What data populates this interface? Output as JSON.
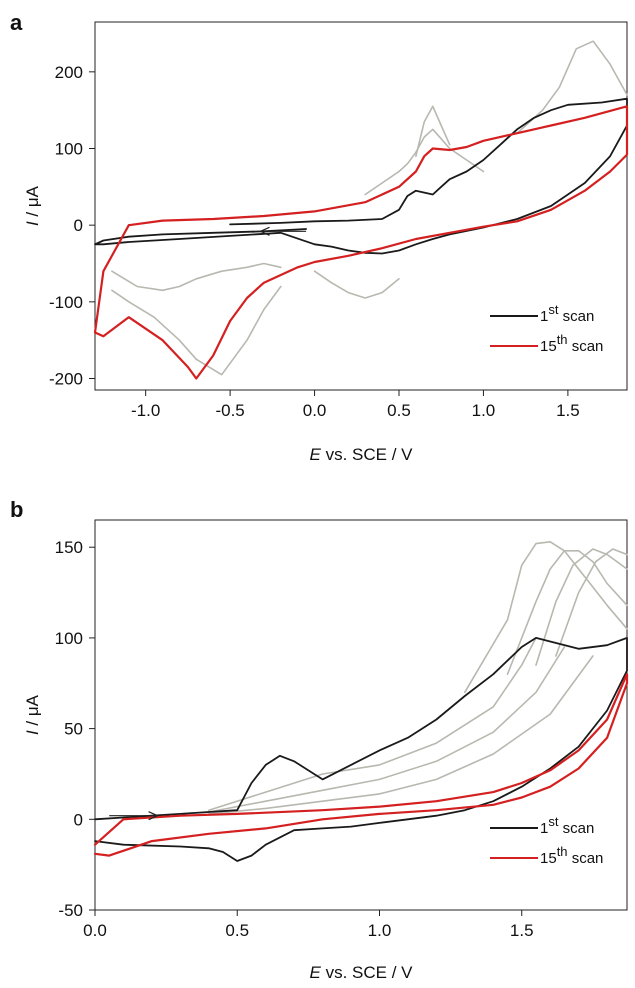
{
  "chart_data": [
    {
      "panel_label": "a",
      "type": "line",
      "xlabel_italic": "E",
      "xlabel_rest": " vs. SCE / V",
      "ylabel_italic": "I",
      "ylabel_rest": " / μA",
      "xlim": [
        -1.3,
        1.85
      ],
      "ylim": [
        -215,
        265
      ],
      "x_ticks": [
        -1.0,
        -0.5,
        0.0,
        0.5,
        1.0,
        1.5
      ],
      "x_tick_labels": [
        "-1.0",
        "-0.5",
        "0.0",
        "0.5",
        "1.0",
        "1.5"
      ],
      "y_ticks": [
        -200,
        -100,
        0,
        100,
        200
      ],
      "y_tick_labels": [
        "-200",
        "-100",
        "0",
        "100",
        "200"
      ],
      "legend": [
        {
          "sup": "st",
          "pre": "1",
          "post": " scan",
          "color": "#1a1a1a"
        },
        {
          "sup": "th",
          "pre": "15",
          "post": " scan",
          "color": "#d42020"
        }
      ],
      "colors": {
        "first_scan": "#1a1a1a",
        "last_scan": "#d42020",
        "intermediate_scans": "#b8b8b0"
      },
      "series": [
        {
          "role": "first",
          "x": [
            -0.05,
            -0.3,
            -0.6,
            -0.9,
            -1.1,
            -1.25,
            -1.3,
            -1.25,
            -1.1,
            -0.8,
            -0.5,
            -0.2,
            0.0,
            0.1,
            0.2,
            0.3,
            0.4,
            0.5,
            0.6,
            0.7,
            0.8,
            1.0,
            1.2,
            1.4,
            1.6,
            1.75,
            1.85,
            1.85,
            1.7,
            1.5,
            1.4,
            1.3,
            1.2,
            1.1,
            1.0,
            0.9,
            0.8,
            0.75,
            0.7,
            0.6,
            0.55,
            0.5,
            0.4,
            0.2,
            0.0,
            -0.2,
            -0.5
          ],
          "y": [
            -5,
            -8,
            -10,
            -12,
            -15,
            -20,
            -25,
            -25,
            -22,
            -18,
            -14,
            -10,
            -25,
            -28,
            -33,
            -36,
            -37,
            -33,
            -25,
            -18,
            -12,
            -3,
            8,
            25,
            55,
            90,
            130,
            165,
            160,
            157,
            150,
            140,
            125,
            105,
            85,
            70,
            60,
            50,
            40,
            45,
            38,
            20,
            8,
            6,
            5,
            3,
            1
          ]
        },
        {
          "role": "last",
          "x": [
            -1.1,
            -1.25,
            -1.3,
            -1.25,
            -1.1,
            -0.9,
            -0.75,
            -0.7,
            -0.6,
            -0.5,
            -0.4,
            -0.3,
            -0.2,
            -0.1,
            0.0,
            0.2,
            0.4,
            0.6,
            0.8,
            1.0,
            1.2,
            1.4,
            1.6,
            1.75,
            1.85,
            1.85,
            1.6,
            1.4,
            1.2,
            1.0,
            0.9,
            0.8,
            0.7,
            0.65,
            0.6,
            0.5,
            0.3,
            0.0,
            -0.3,
            -0.6,
            -0.9,
            -1.1
          ],
          "y": [
            0,
            -60,
            -140,
            -145,
            -120,
            -150,
            -185,
            -200,
            -170,
            -125,
            -95,
            -75,
            -65,
            -55,
            -48,
            -40,
            -30,
            -18,
            -10,
            -2,
            5,
            20,
            45,
            70,
            92,
            155,
            140,
            130,
            120,
            110,
            102,
            98,
            100,
            90,
            70,
            50,
            30,
            18,
            12,
            8,
            6,
            0
          ]
        },
        {
          "role": "intermediate",
          "x": [
            0.6,
            0.65,
            0.7,
            0.75,
            0.8
          ],
          "y": [
            90,
            135,
            155,
            130,
            105
          ]
        },
        {
          "role": "intermediate",
          "x": [
            1.2,
            1.35,
            1.45,
            1.55,
            1.65,
            1.75,
            1.85
          ],
          "y": [
            120,
            150,
            180,
            230,
            240,
            210,
            170
          ]
        },
        {
          "role": "intermediate",
          "x": [
            -1.2,
            -1.1,
            -0.95,
            -0.8,
            -0.7,
            -0.55,
            -0.4,
            -0.3,
            -0.2
          ],
          "y": [
            -85,
            -100,
            -120,
            -150,
            -175,
            -195,
            -150,
            -110,
            -80
          ]
        },
        {
          "role": "intermediate",
          "x": [
            -1.2,
            -1.05,
            -0.9,
            -0.8,
            -0.7,
            -0.55,
            -0.4,
            -0.3,
            -0.2
          ],
          "y": [
            -60,
            -80,
            -85,
            -80,
            -70,
            -60,
            -55,
            -50,
            -55
          ]
        },
        {
          "role": "intermediate",
          "x": [
            0.0,
            0.1,
            0.2,
            0.3,
            0.4,
            0.5
          ],
          "y": [
            -60,
            -75,
            -88,
            -95,
            -88,
            -70
          ]
        },
        {
          "role": "intermediate",
          "x": [
            0.3,
            0.4,
            0.5,
            0.55,
            0.6,
            0.65,
            0.7,
            0.8,
            0.9,
            1.0
          ],
          "y": [
            40,
            55,
            70,
            80,
            95,
            115,
            125,
            100,
            85,
            70
          ]
        }
      ]
    },
    {
      "panel_label": "b",
      "type": "line",
      "xlabel_italic": "E",
      "xlabel_rest": " vs. SCE / V",
      "ylabel_italic": "I",
      "ylabel_rest": " / μA",
      "xlim": [
        0.0,
        1.87
      ],
      "ylim": [
        -50,
        165
      ],
      "x_ticks": [
        0.0,
        0.5,
        1.0,
        1.5
      ],
      "x_tick_labels": [
        "0.0",
        "0.5",
        "1.0",
        "1.5"
      ],
      "y_ticks": [
        -50,
        0,
        50,
        100,
        150
      ],
      "y_tick_labels": [
        "-50",
        "0",
        "50",
        "100",
        "150"
      ],
      "legend": [
        {
          "sup": "st",
          "pre": "1",
          "post": " scan",
          "color": "#1a1a1a"
        },
        {
          "sup": "th",
          "pre": "15",
          "post": " scan",
          "color": "#d42020"
        }
      ],
      "colors": {
        "first_scan": "#1a1a1a",
        "last_scan": "#d42020",
        "intermediate_scans": "#b8b8b0"
      },
      "series": [
        {
          "role": "first",
          "x": [
            0.0,
            0.1,
            0.2,
            0.3,
            0.4,
            0.5,
            0.55,
            0.6,
            0.65,
            0.7,
            0.8,
            0.9,
            1.0,
            1.1,
            1.2,
            1.3,
            1.4,
            1.5,
            1.55,
            1.6,
            1.7,
            1.8,
            1.87,
            1.87,
            1.8,
            1.7,
            1.6,
            1.5,
            1.4,
            1.3,
            1.2,
            1.1,
            1.0,
            0.9,
            0.8,
            0.7,
            0.6,
            0.55,
            0.5,
            0.45,
            0.4,
            0.3,
            0.1,
            0.0
          ],
          "y": [
            0,
            1,
            2,
            3,
            4,
            5,
            20,
            30,
            35,
            32,
            22,
            30,
            38,
            45,
            55,
            68,
            80,
            95,
            100,
            98,
            94,
            96,
            100,
            82,
            60,
            40,
            28,
            18,
            10,
            5,
            2,
            0,
            -2,
            -4,
            -5,
            -6,
            -14,
            -20,
            -23,
            -18,
            -16,
            -15,
            -14,
            -12
          ]
        },
        {
          "role": "last",
          "x": [
            0.0,
            0.1,
            0.3,
            0.5,
            0.8,
            1.0,
            1.2,
            1.4,
            1.5,
            1.6,
            1.7,
            1.8,
            1.87,
            1.87,
            1.8,
            1.7,
            1.6,
            1.5,
            1.4,
            1.2,
            1.0,
            0.8,
            0.6,
            0.4,
            0.2,
            0.05,
            0.0
          ],
          "y": [
            -14,
            0,
            2,
            3,
            5,
            7,
            10,
            15,
            20,
            27,
            38,
            55,
            80,
            75,
            45,
            28,
            18,
            12,
            8,
            5,
            3,
            0,
            -5,
            -8,
            -12,
            -20,
            -19
          ]
        },
        {
          "role": "intermediate",
          "x": [
            1.3,
            1.45,
            1.5,
            1.55,
            1.6,
            1.65,
            1.7,
            1.75,
            1.8,
            1.87
          ],
          "y": [
            70,
            110,
            140,
            152,
            153,
            148,
            138,
            128,
            118,
            105
          ]
        },
        {
          "role": "intermediate",
          "x": [
            1.45,
            1.55,
            1.6,
            1.65,
            1.7,
            1.75,
            1.8,
            1.87
          ],
          "y": [
            80,
            120,
            138,
            148,
            148,
            142,
            130,
            118
          ]
        },
        {
          "role": "intermediate",
          "x": [
            1.55,
            1.62,
            1.68,
            1.75,
            1.8,
            1.87
          ],
          "y": [
            85,
            120,
            140,
            149,
            146,
            138
          ]
        },
        {
          "role": "intermediate",
          "x": [
            1.62,
            1.7,
            1.76,
            1.82,
            1.87
          ],
          "y": [
            90,
            125,
            142,
            149,
            146
          ]
        },
        {
          "role": "intermediate",
          "x": [
            0.4,
            0.6,
            0.8,
            1.0,
            1.2,
            1.4,
            1.5,
            1.55
          ],
          "y": [
            5,
            15,
            25,
            30,
            42,
            62,
            85,
            100
          ]
        },
        {
          "role": "intermediate",
          "x": [
            0.4,
            0.6,
            0.8,
            1.0,
            1.2,
            1.4,
            1.55,
            1.65
          ],
          "y": [
            4,
            10,
            16,
            22,
            32,
            48,
            70,
            95
          ]
        },
        {
          "role": "intermediate",
          "x": [
            0.4,
            0.6,
            0.8,
            1.0,
            1.2,
            1.4,
            1.6,
            1.75
          ],
          "y": [
            3,
            6,
            10,
            14,
            22,
            36,
            58,
            90
          ]
        }
      ]
    }
  ]
}
